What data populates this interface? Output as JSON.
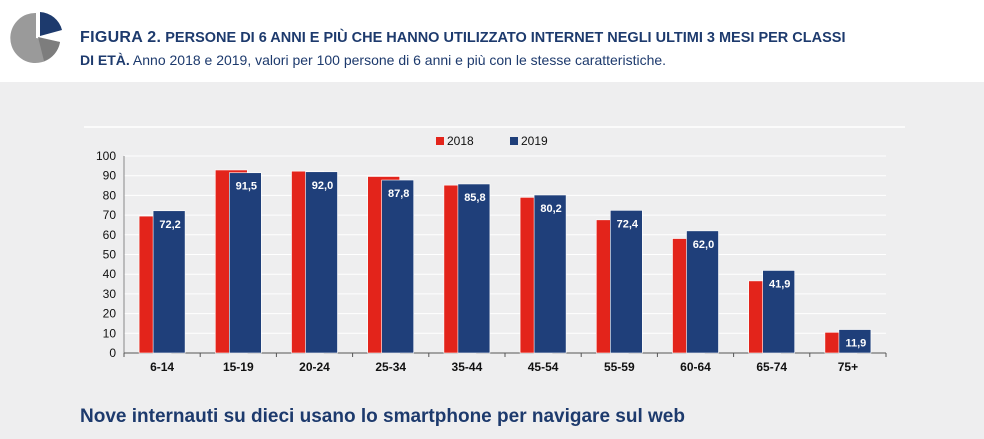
{
  "figure": {
    "label": "FIGURA 2.",
    "title": "PERSONE DI 6 ANNI E PIÙ CHE HANNO UTILIZZATO INTERNET NEGLI ULTIMI 3 MESI PER CLASSI",
    "title_cont": "DI ETÀ.",
    "subtitle": "Anno 2018 e 2019, valori per 100 persone di 6 anni e più con le stesse caratteristiche."
  },
  "footer": {
    "heading": "Nove internauti su dieci usano lo smartphone per navigare sul web"
  },
  "colors": {
    "series_2018": "#e3241b",
    "series_2019": "#1f3f7a",
    "text_dark": "#1d3a6d",
    "grid": "#ffffff"
  },
  "chart_data": {
    "type": "bar",
    "categories": [
      "6-14",
      "15-19",
      "20-24",
      "25-34",
      "35-44",
      "45-54",
      "55-59",
      "60-64",
      "65-74",
      "75+"
    ],
    "series": [
      {
        "name": "2018",
        "values": [
          69.5,
          92.9,
          92.3,
          89.6,
          85.2,
          79.0,
          67.6,
          58.1,
          36.6,
          10.5
        ]
      },
      {
        "name": "2019",
        "values": [
          72.2,
          91.5,
          92.0,
          87.8,
          85.8,
          80.2,
          72.4,
          62.0,
          41.9,
          11.9
        ]
      }
    ],
    "data_labels": [
      "72,2",
      "91,5",
      "92,0",
      "87,8",
      "85,8",
      "80,2",
      "72,4",
      "62,0",
      "41,9",
      "11,9"
    ],
    "y_ticks": [
      "0",
      "10",
      "20",
      "30",
      "40",
      "50",
      "60",
      "70",
      "80",
      "90",
      "100"
    ],
    "ylim": [
      0,
      100
    ],
    "grid": true,
    "legend_position": "top-center"
  }
}
